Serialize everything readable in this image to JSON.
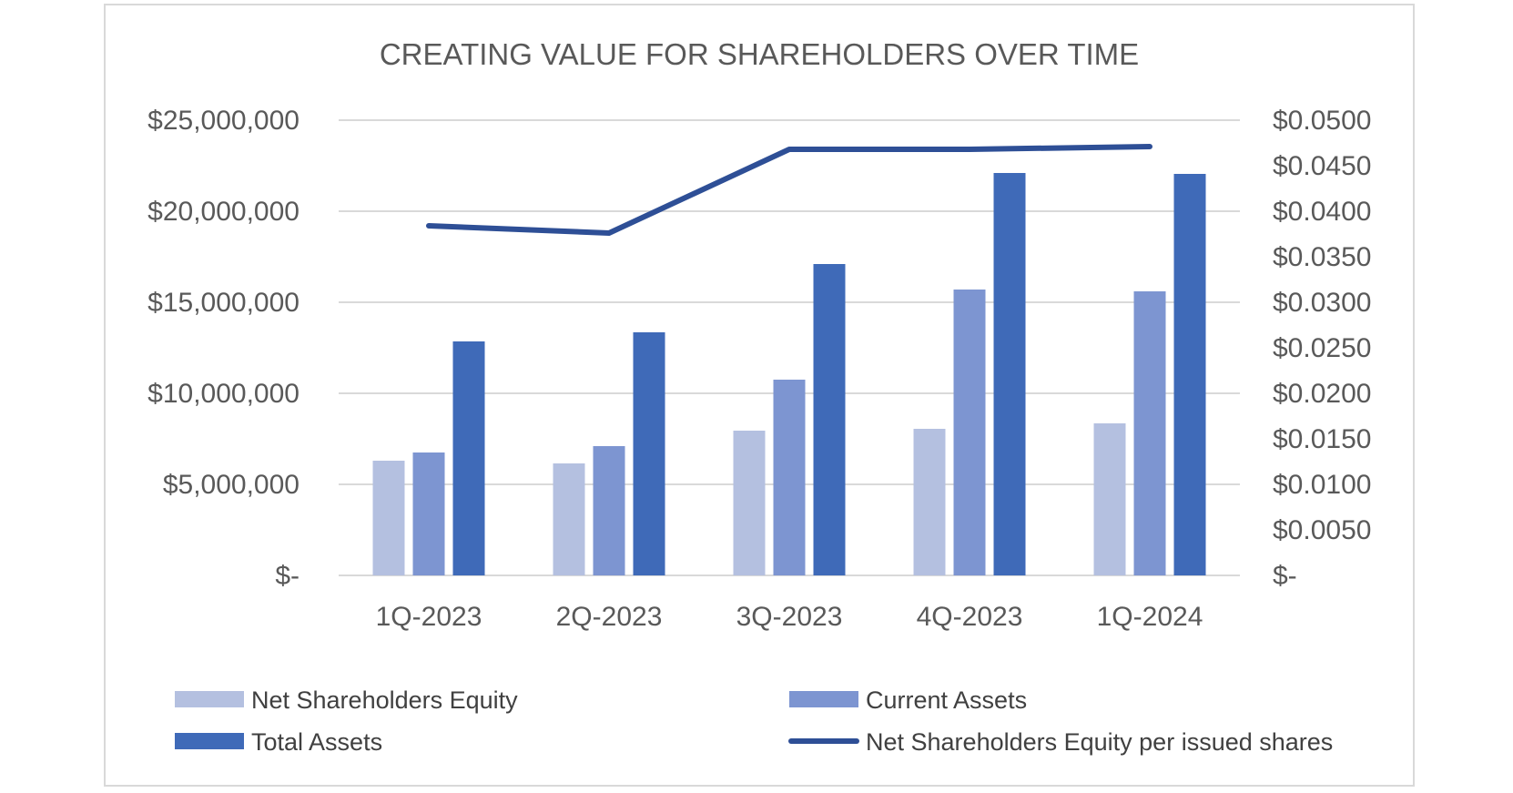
{
  "chart_data": {
    "type": "bar",
    "title": "CREATING VALUE FOR SHAREHOLDERS OVER TIME",
    "categories": [
      "1Q-2023",
      "2Q-2023",
      "3Q-2023",
      "4Q-2023",
      "1Q-2024"
    ],
    "series": [
      {
        "name": "Net Shareholders Equity",
        "type": "bar",
        "axis": "left",
        "color": "#b4c0e0",
        "values": [
          6300000,
          6150000,
          7950000,
          8050000,
          8350000
        ]
      },
      {
        "name": "Current Assets",
        "type": "bar",
        "axis": "left",
        "color": "#7d95d1",
        "values": [
          6750000,
          7100000,
          10750000,
          15700000,
          15600000
        ]
      },
      {
        "name": "Total Assets",
        "type": "bar",
        "axis": "left",
        "color": "#3f6ab8",
        "values": [
          12850000,
          13350000,
          17100000,
          22100000,
          22050000
        ]
      },
      {
        "name": "Net Shareholders Equity per issued shares",
        "type": "line",
        "axis": "right",
        "color": "#2e4f96",
        "values": [
          0.0384,
          0.0376,
          0.0468,
          0.0468,
          0.0471
        ]
      }
    ],
    "left_axis": {
      "ylim": [
        0,
        25000000
      ],
      "ticks": [
        {
          "value": 0,
          "label": "$-"
        },
        {
          "value": 5000000,
          "label": "$5,000,000"
        },
        {
          "value": 10000000,
          "label": "$10,000,000"
        },
        {
          "value": 15000000,
          "label": "$15,000,000"
        },
        {
          "value": 20000000,
          "label": "$20,000,000"
        },
        {
          "value": 25000000,
          "label": "$25,000,000"
        }
      ]
    },
    "right_axis": {
      "ylim": [
        0,
        0.05
      ],
      "ticks": [
        {
          "value": 0,
          "label": "$-"
        },
        {
          "value": 0.005,
          "label": "$0.0050"
        },
        {
          "value": 0.01,
          "label": "$0.0100"
        },
        {
          "value": 0.015,
          "label": "$0.0150"
        },
        {
          "value": 0.02,
          "label": "$0.0200"
        },
        {
          "value": 0.025,
          "label": "$0.0250"
        },
        {
          "value": 0.03,
          "label": "$0.0300"
        },
        {
          "value": 0.035,
          "label": "$0.0350"
        },
        {
          "value": 0.04,
          "label": "$0.0400"
        },
        {
          "value": 0.045,
          "label": "$0.0450"
        },
        {
          "value": 0.05,
          "label": "$0.0500"
        }
      ]
    },
    "grid": true,
    "gridline_color": "#d9d9d9",
    "legend_position": "bottom"
  }
}
